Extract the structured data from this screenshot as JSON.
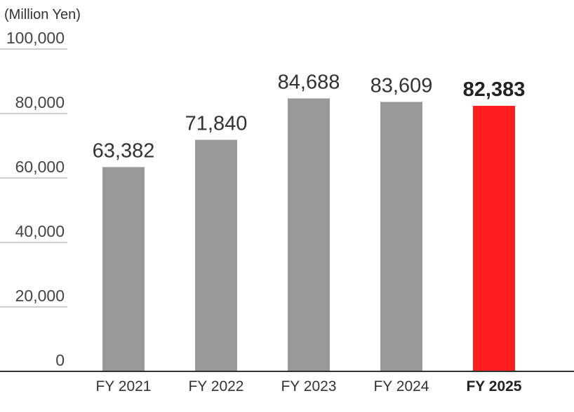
{
  "chart_data": {
    "type": "bar",
    "unit_label": "(Million Yen)",
    "categories": [
      "FY 2021",
      "FY 2022",
      "FY 2023",
      "FY 2024",
      "FY 2025"
    ],
    "values": [
      63382,
      71840,
      84688,
      83609,
      82383
    ],
    "value_labels": [
      "63,382",
      "71,840",
      "84,688",
      "83,609",
      "82,383"
    ],
    "highlight_index": 4,
    "ylim": [
      0,
      100000
    ],
    "yticks": [
      0,
      20000,
      40000,
      60000,
      80000,
      100000
    ],
    "ytick_labels": [
      "0",
      "20,000",
      "40,000",
      "60,000",
      "80,000",
      "100,000"
    ],
    "grid": true,
    "colors": {
      "bar": "#999999",
      "highlight": "#ff1e1e"
    }
  }
}
